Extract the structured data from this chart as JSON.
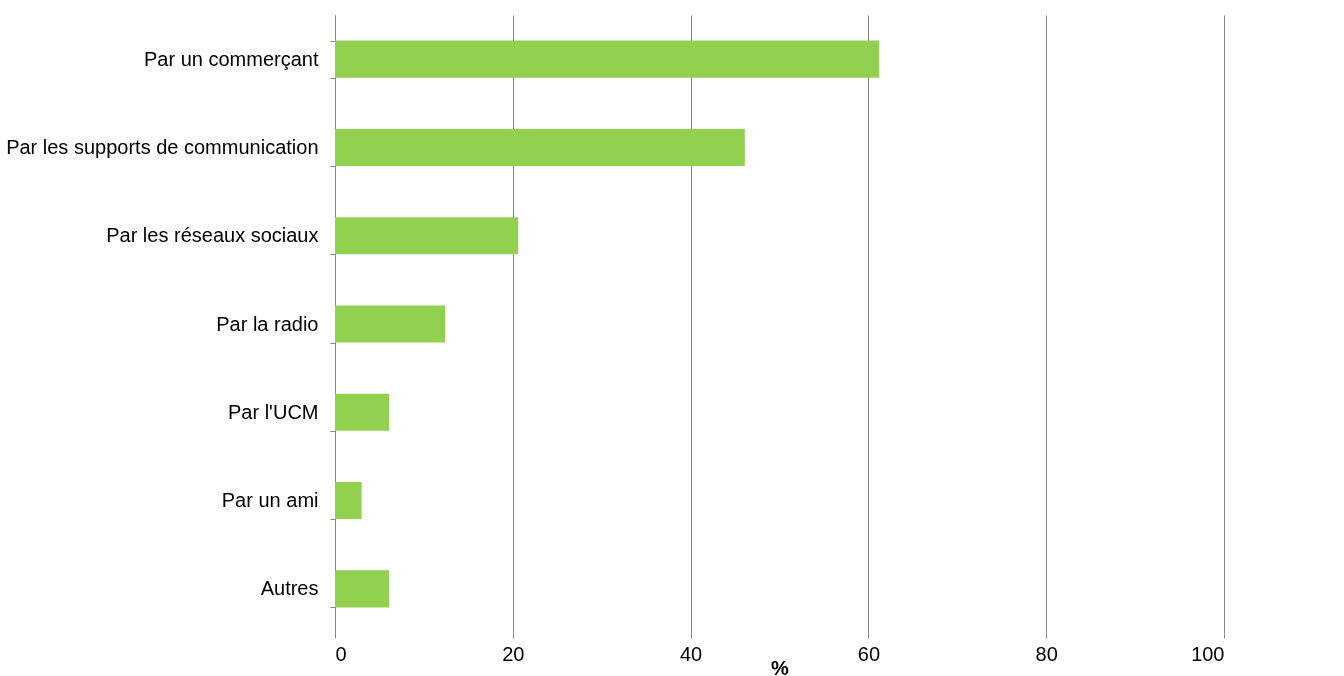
{
  "chart_data": {
    "type": "bar",
    "orientation": "horizontal",
    "xlabel": "%",
    "categories": [
      "Par un commerçant",
      "Par les supports de communication",
      "Par les réseaux sociaux",
      "Par la radio",
      "Par l'UCM",
      "Par un ami",
      "Autres"
    ],
    "values": [
      61.2,
      46.1,
      20.6,
      12.4,
      6.1,
      3.0,
      6.1
    ],
    "color": "#92d050",
    "xlim": [
      0,
      100
    ],
    "xticks": [
      0,
      20,
      40,
      60,
      80,
      100
    ],
    "grid": "x"
  }
}
